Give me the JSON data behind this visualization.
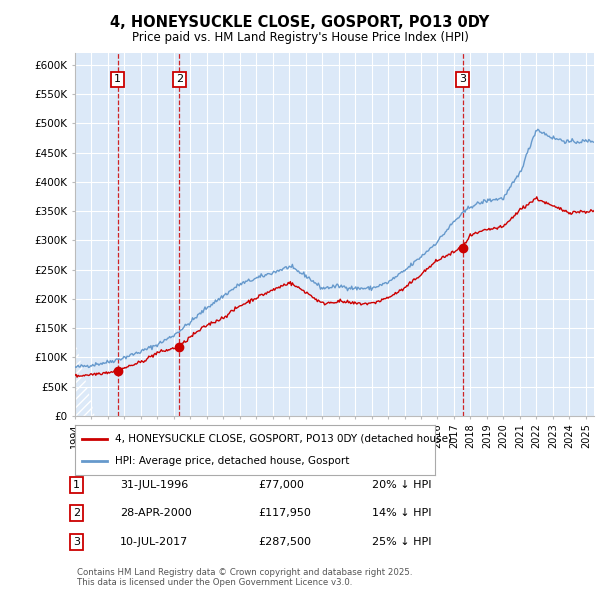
{
  "title": "4, HONEYSUCKLE CLOSE, GOSPORT, PO13 0DY",
  "subtitle": "Price paid vs. HM Land Registry's House Price Index (HPI)",
  "legend_label_red": "4, HONEYSUCKLE CLOSE, GOSPORT, PO13 0DY (detached house)",
  "legend_label_blue": "HPI: Average price, detached house, Gosport",
  "footer": "Contains HM Land Registry data © Crown copyright and database right 2025.\nThis data is licensed under the Open Government Licence v3.0.",
  "transactions": [
    {
      "num": 1,
      "date": "31-JUL-1996",
      "price": 77000,
      "price_str": "£77,000",
      "year": 1996.58,
      "pct": "20% ↓ HPI"
    },
    {
      "num": 2,
      "date": "28-APR-2000",
      "price": 117950,
      "price_str": "£117,950",
      "year": 2000.33,
      "pct": "14% ↓ HPI"
    },
    {
      "num": 3,
      "date": "10-JUL-2017",
      "price": 287500,
      "price_str": "£287,500",
      "year": 2017.53,
      "pct": "25% ↓ HPI"
    }
  ],
  "xlim": [
    1994.0,
    2025.5
  ],
  "ylim": [
    0,
    620000
  ],
  "yticks": [
    0,
    50000,
    100000,
    150000,
    200000,
    250000,
    300000,
    350000,
    400000,
    450000,
    500000,
    550000,
    600000
  ],
  "ytick_labels": [
    "£0",
    "£50K",
    "£100K",
    "£150K",
    "£200K",
    "£250K",
    "£300K",
    "£350K",
    "£400K",
    "£450K",
    "£500K",
    "£550K",
    "£600K"
  ],
  "bg_color": "#dce9f8",
  "grid_color": "#ffffff",
  "red_color": "#cc0000",
  "blue_color": "#6699cc",
  "hpi_years": [
    1994,
    1995,
    1996,
    1997,
    1998,
    1999,
    2000,
    2001,
    2002,
    2003,
    2004,
    2005,
    2006,
    2007,
    2008,
    2009,
    2010,
    2011,
    2012,
    2013,
    2014,
    2015,
    2016,
    2017,
    2018,
    2019,
    2020,
    2021,
    2022,
    2023,
    2024,
    2025.5
  ],
  "hpi_vals": [
    83000,
    87000,
    92000,
    100000,
    110000,
    122000,
    138000,
    160000,
    185000,
    205000,
    225000,
    235000,
    245000,
    255000,
    240000,
    218000,
    222000,
    218000,
    218000,
    228000,
    248000,
    272000,
    298000,
    332000,
    358000,
    368000,
    372000,
    415000,
    490000,
    475000,
    468000,
    470000
  ],
  "red_years": [
    1994,
    1995,
    1996.58,
    1997,
    1998,
    1999,
    2000.33,
    2001,
    2002,
    2003,
    2004,
    2005,
    2006,
    2007,
    2008,
    2009,
    2010,
    2011,
    2012,
    2013,
    2014,
    2015,
    2016,
    2017.53,
    2018,
    2019,
    2020,
    2021,
    2022,
    2023,
    2024,
    2025.5
  ],
  "red_vals": [
    68000,
    71000,
    77000,
    82000,
    92000,
    108000,
    117950,
    135000,
    155000,
    168000,
    188000,
    202000,
    215000,
    228000,
    212000,
    192000,
    196000,
    192000,
    192000,
    202000,
    218000,
    242000,
    266000,
    287500,
    308000,
    318000,
    323000,
    352000,
    372000,
    358000,
    348000,
    350000
  ]
}
